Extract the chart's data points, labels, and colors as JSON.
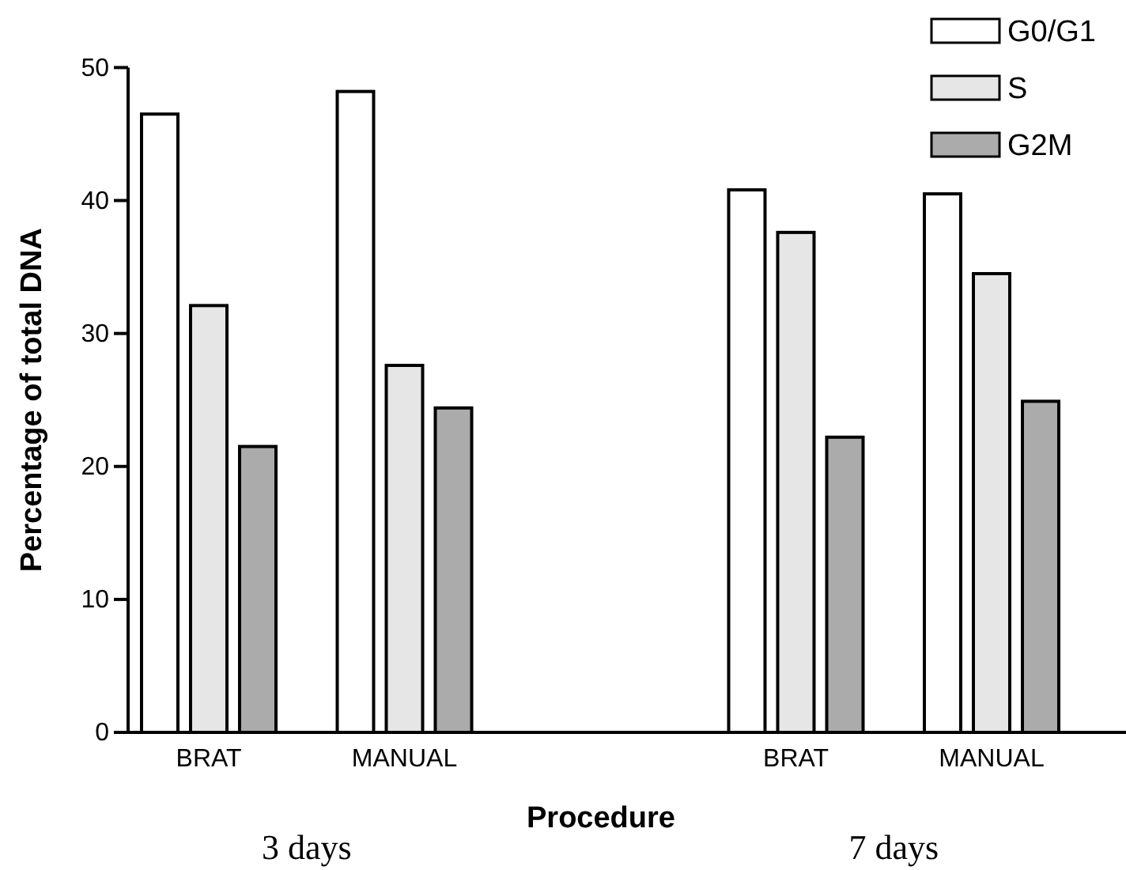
{
  "chart_data": {
    "type": "bar",
    "xlabel": "Procedure",
    "ylabel": "Percentage of total DNA",
    "categories": [
      "BRAT",
      "MANUAL",
      null,
      "BRAT",
      "MANUAL"
    ],
    "series": [
      {
        "name": "G0/G1",
        "color": "#ffffff",
        "values": [
          46.5,
          48.2,
          null,
          40.8,
          40.5
        ]
      },
      {
        "name": "S",
        "color": "#e6e6e6",
        "values": [
          32.1,
          27.6,
          null,
          37.6,
          34.5
        ]
      },
      {
        "name": "G2M",
        "color": "#ababab",
        "values": [
          21.5,
          24.4,
          null,
          22.2,
          24.9
        ]
      }
    ],
    "ylim": [
      0,
      50
    ],
    "yticks": [
      0,
      10,
      20,
      30,
      40,
      50
    ],
    "grid": false,
    "legend": "top right",
    "annotations": [
      "3 days",
      "7 days"
    ]
  }
}
